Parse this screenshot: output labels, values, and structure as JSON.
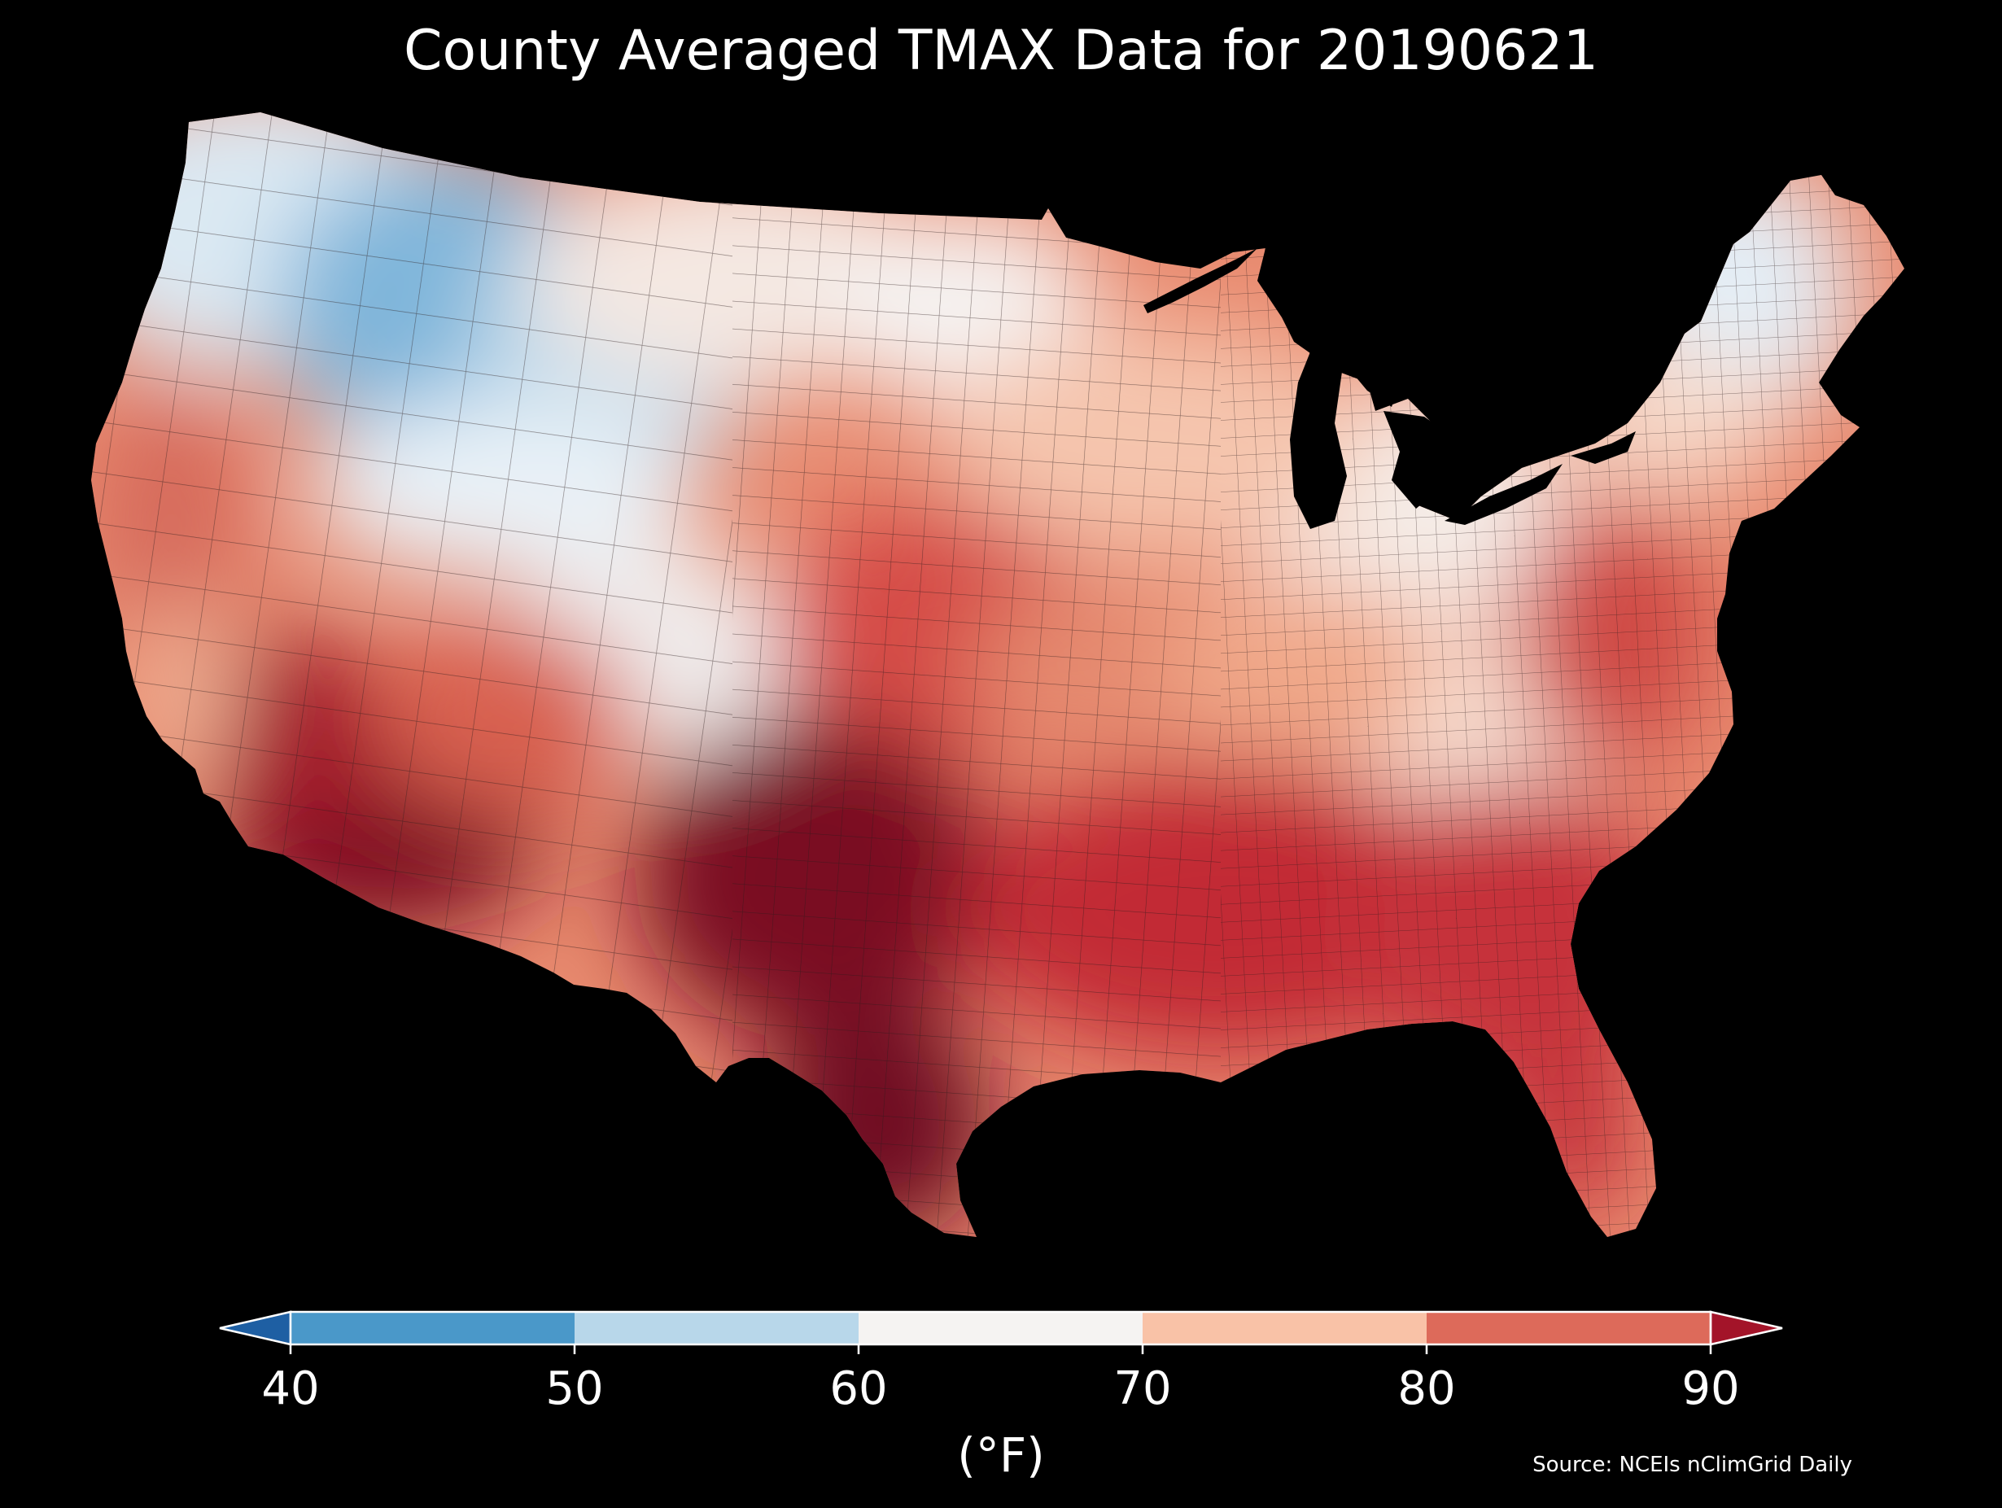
{
  "title": "County Averaged TMAX Data for 20190621",
  "colorbar": {
    "unit_label": "(°F)",
    "ticks": [
      "40",
      "50",
      "60",
      "70",
      "80",
      "90"
    ],
    "range": [
      40,
      90
    ],
    "bins": [
      {
        "from": 40,
        "to": 50,
        "color": "#4a98c9"
      },
      {
        "from": 50,
        "to": 60,
        "color": "#b8d7ea"
      },
      {
        "from": 60,
        "to": 70,
        "color": "#f5f3f2"
      },
      {
        "from": 70,
        "to": 80,
        "color": "#f9c2a7"
      },
      {
        "from": 80,
        "to": 90,
        "color": "#dd6a5a"
      }
    ],
    "extend_low_color": "#1e5fa3",
    "extend_high_color": "#a31429"
  },
  "source": "Source: NCEIs nClimGrid Daily",
  "map": {
    "region": "contiguous-united-states",
    "background_color": "#000000",
    "border_color": "#222222"
  }
}
